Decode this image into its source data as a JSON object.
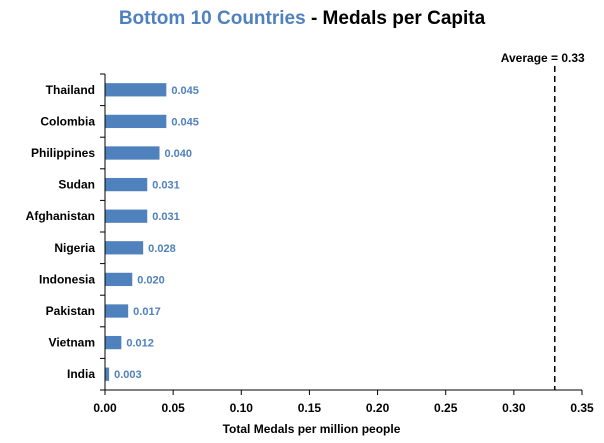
{
  "chart_data": {
    "type": "bar",
    "orientation": "horizontal",
    "title_highlight": "Bottom 10 Countries",
    "title_rest": " - Medals per Capita",
    "categories": [
      "Thailand",
      "Colombia",
      "Philippines",
      "Sudan",
      "Afghanistan",
      "Nigeria",
      "Indonesia",
      "Pakistan",
      "Vietnam",
      "India"
    ],
    "values": [
      0.045,
      0.045,
      0.04,
      0.031,
      0.031,
      0.028,
      0.02,
      0.017,
      0.012,
      0.003
    ],
    "data_labels": [
      "0.045",
      "0.045",
      "0.040",
      "0.031",
      "0.031",
      "0.028",
      "0.020",
      "0.017",
      "0.012",
      "0.003"
    ],
    "xlabel": "Total Medals per million people",
    "xlim": [
      0,
      0.35
    ],
    "xticks": [
      0,
      0.05,
      0.1,
      0.15,
      0.2,
      0.25,
      0.3,
      0.35
    ],
    "xtick_labels": [
      "0.00",
      "0.05",
      "0.10",
      "0.15",
      "0.20",
      "0.25",
      "0.30",
      "0.35"
    ],
    "reference_line": {
      "value": 0.33,
      "label": "Average = 0.33",
      "style": "dashed"
    },
    "grid": false,
    "legend": "none",
    "colors": {
      "bar": "#4f81bd",
      "title_highlight": "#4f81bd",
      "label": "#4f81bd",
      "axis": "#000000"
    }
  }
}
